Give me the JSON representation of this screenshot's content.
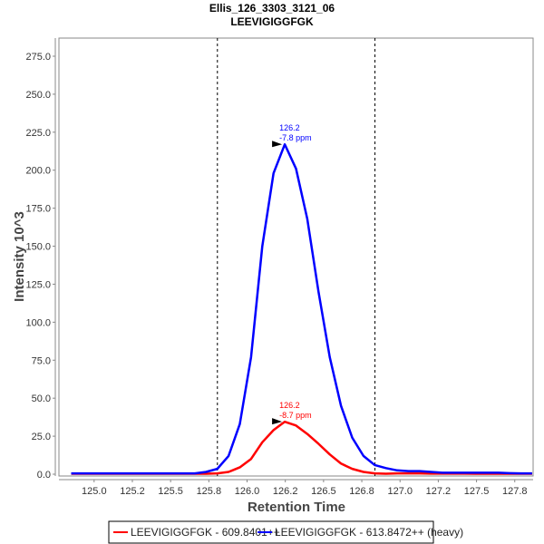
{
  "chart_data": {
    "type": "line",
    "title": "Ellis_126_3303_3121_06",
    "subtitle": "LEEVIGIGGFGK",
    "xlabel": "Retention Time",
    "ylabel": "Intensity 10^3",
    "xlim": [
      124.77,
      127.87
    ],
    "ylim": [
      0,
      287
    ],
    "grid": false,
    "x_ticks": [
      125.0,
      125.25,
      125.5,
      125.75,
      126.0,
      126.25,
      126.5,
      126.75,
      127.0,
      127.25,
      127.5,
      127.75
    ],
    "x_tick_labels": [
      "125.0",
      "125.2",
      "125.5",
      "125.8",
      "126.0",
      "126.2",
      "126.5",
      "126.8",
      "127.0",
      "127.2",
      "127.5",
      "127.8"
    ],
    "y_ticks": [
      0,
      25,
      50,
      75,
      100,
      125,
      150,
      175,
      200,
      225,
      250,
      275
    ],
    "y_tick_labels": [
      "0.0",
      "25.0",
      "50.0",
      "75.0",
      "100.0",
      "125.0",
      "150.0",
      "175.0",
      "200.0",
      "225.0",
      "250.0",
      "275.0"
    ],
    "x_start": 124.85,
    "x_step": 0.0735,
    "integration_bounds": [
      125.806,
      126.836
    ],
    "series": [
      {
        "name": "LEEVIGIGGFGK - 609.8401++",
        "color": "#ff0000",
        "values": [
          0.3,
          0.3,
          0.3,
          0.3,
          0.3,
          0.3,
          0.3,
          0.3,
          0.3,
          0.3,
          0.3,
          0.3,
          0.3,
          0.5,
          1.5,
          4.5,
          10,
          21,
          29,
          34.5,
          32,
          26.5,
          20,
          13,
          7,
          3.5,
          1.5,
          0.5,
          0.3,
          0.5,
          0.5,
          0.5,
          0.4,
          0.4,
          0.4,
          0.4,
          0.3,
          0.3,
          0.3,
          0.3,
          0.3,
          0.3
        ],
        "peak_label": [
          "126.2",
          "-8.7 ppm"
        ],
        "peak_index": 19
      },
      {
        "name": "LEEVIGIGGFGK - 613.8472++ (heavy)",
        "color": "#0000ff",
        "values": [
          0.5,
          0.5,
          0.5,
          0.5,
          0.5,
          0.5,
          0.5,
          0.5,
          0.5,
          0.5,
          0.5,
          0.5,
          1.5,
          3.5,
          12,
          33,
          77,
          150,
          198,
          217,
          201,
          168,
          120,
          77,
          45,
          24,
          12,
          6,
          4,
          2.5,
          2,
          2,
          1.5,
          1,
          1,
          1,
          1,
          1,
          1,
          0.7,
          0.5,
          0.5
        ],
        "peak_label": [
          "126.2",
          "-7.8 ppm"
        ],
        "peak_index": 19
      }
    ],
    "legend": "bottom"
  }
}
